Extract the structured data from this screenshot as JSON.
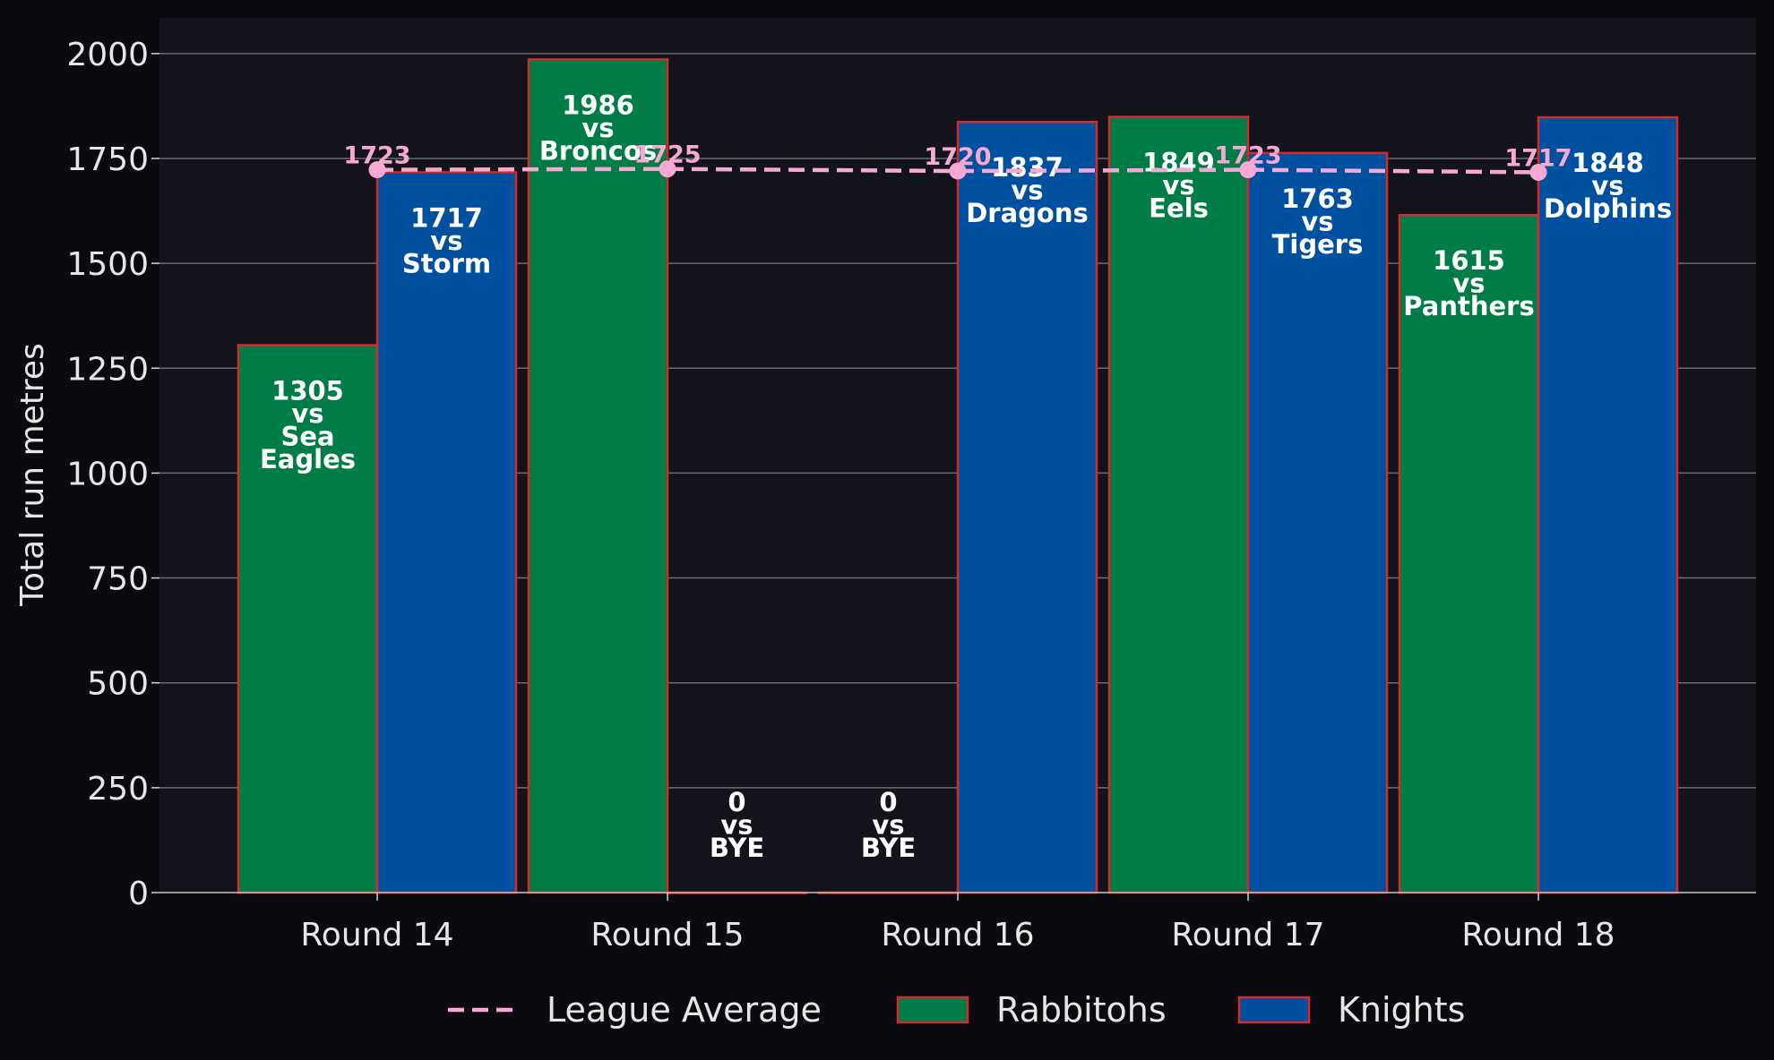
{
  "chart_data": {
    "type": "bar",
    "categories": [
      "Round 14",
      "Round 15",
      "Round 16",
      "Round 17",
      "Round 18"
    ],
    "ylabel": "Total run metres",
    "xlabel": "",
    "title": "",
    "ylim": [
      0,
      2085
    ],
    "yticks": [
      0,
      250,
      500,
      750,
      1000,
      1250,
      1500,
      1750,
      2000
    ],
    "grid": "y",
    "legend_position": "bottom-center",
    "series": [
      {
        "name": "Rabbitohs",
        "color": "#007d47",
        "values": [
          1305,
          1986,
          0,
          1849,
          1615
        ],
        "opponents": [
          "Sea Eagles",
          "Broncos",
          "BYE",
          "Eels",
          "Panthers"
        ]
      },
      {
        "name": "Knights",
        "color": "#0050a0",
        "values": [
          1717,
          0,
          1837,
          1763,
          1848
        ],
        "opponents": [
          "Storm",
          "BYE",
          "Dragons",
          "Tigers",
          "Dolphins"
        ]
      }
    ],
    "league_average": {
      "name": "League Average",
      "color": "#f7a8d3",
      "values": [
        1723,
        1725,
        1720,
        1723,
        1717
      ]
    },
    "bar_edge_color": "#d42a2a",
    "vs_word": "vs"
  }
}
